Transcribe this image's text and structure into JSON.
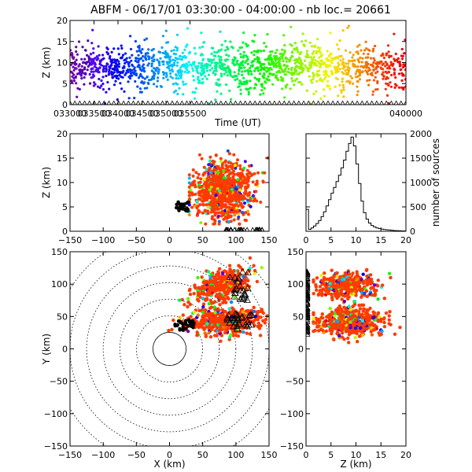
{
  "figure": {
    "title": "ABFM - 06/17/01 03:30:00 - 04:00:00 - nb loc.=  20661"
  },
  "chart_data": [
    {
      "id": "time_height",
      "type": "scatter",
      "xlabel": "Time (UT)",
      "ylabel": "Z (km)",
      "xlim": [
        33000,
        40000
      ],
      "ylim": [
        0,
        20
      ],
      "xticks": [
        "033000",
        "033500",
        "034000",
        "034500",
        "035000",
        "035500",
        "040000"
      ],
      "xtick_values": [
        33000,
        33500,
        34000,
        34500,
        35000,
        35500,
        40000
      ],
      "yticks": [
        "0",
        "5",
        "10",
        "15",
        "20"
      ],
      "color_encoding": "time, violet (033000) to red (040000)",
      "marker_row": "triangles along Z=0",
      "n_sources": 20661
    },
    {
      "id": "x_height",
      "type": "scatter",
      "xlabel": "",
      "ylabel": "Z (km)",
      "xlim": [
        -150,
        150
      ],
      "ylim": [
        0,
        20
      ],
      "xticks": [
        "−150",
        "−100",
        "−50",
        "0",
        "50",
        "100",
        "150"
      ],
      "yticks": [
        "0",
        "5",
        "10",
        "15",
        "20"
      ],
      "clusters": [
        {
          "x_range": [
            30,
            145
          ],
          "z_range": [
            2,
            20
          ],
          "dominant_color": "#ff3a00"
        },
        {
          "x_range": [
            -5,
            30
          ],
          "z_range": [
            3,
            6
          ],
          "dominant_color": "#000000"
        }
      ]
    },
    {
      "id": "height_histogram",
      "type": "line",
      "xlabel": "",
      "ylabel": "number of sources",
      "xlim": [
        0,
        20
      ],
      "ylim": [
        0,
        2000
      ],
      "xticks": [
        "0",
        "5",
        "10",
        "15",
        "20"
      ],
      "yticks": [
        "0",
        "500",
        "1000",
        "1500",
        "2000"
      ],
      "bin_width_km": 0.5,
      "x": [
        0,
        0.5,
        1,
        1.5,
        2,
        2.5,
        3,
        3.5,
        4,
        4.5,
        5,
        5.5,
        6,
        6.5,
        7,
        7.5,
        8,
        8.5,
        9,
        9.5,
        10,
        10.5,
        11,
        11.5,
        12,
        12.5,
        13,
        13.5,
        14,
        14.5,
        15,
        15.5,
        16,
        16.5,
        17,
        17.5,
        18,
        18.5,
        19,
        19.5
      ],
      "values": [
        450,
        40,
        70,
        110,
        160,
        220,
        300,
        400,
        520,
        650,
        780,
        900,
        1020,
        1150,
        1300,
        1460,
        1640,
        1800,
        1930,
        1750,
        1380,
        980,
        620,
        380,
        250,
        170,
        120,
        90,
        70,
        55,
        45,
        35,
        30,
        25,
        20,
        15,
        12,
        10,
        8,
        6
      ]
    },
    {
      "id": "plan_view",
      "type": "scatter",
      "xlabel": "X (km)",
      "ylabel": "Y (km)",
      "xlim": [
        -150,
        150
      ],
      "ylim": [
        -150,
        150
      ],
      "xticks": [
        "−150",
        "−100",
        "−50",
        "0",
        "50",
        "100",
        "150"
      ],
      "yticks": [
        "−150",
        "−100",
        "−50",
        "0",
        "50",
        "100",
        "150"
      ],
      "range_rings_km": [
        25,
        50,
        75,
        100,
        125,
        150,
        175
      ],
      "clusters": [
        {
          "x_range": [
            40,
            145
          ],
          "y_range": [
            20,
            70
          ],
          "dominant_color": "#ff3a00"
        },
        {
          "x_range": [
            40,
            120
          ],
          "y_range": [
            70,
            125
          ],
          "dominant_color": "#ff3a00"
        },
        {
          "x_range": [
            5,
            40
          ],
          "y_range": [
            25,
            45
          ],
          "dominant_color": "#000000"
        }
      ]
    },
    {
      "id": "height_y",
      "type": "scatter",
      "xlabel": "Z (km)",
      "ylabel": "",
      "xlim": [
        0,
        20
      ],
      "ylim": [
        -150,
        150
      ],
      "xticks": [
        "0",
        "5",
        "10",
        "15",
        "20"
      ],
      "yticks": [
        "−150",
        "−100",
        "−50",
        "0",
        "50",
        "100",
        "150"
      ],
      "clusters": [
        {
          "z_range": [
            2,
            20
          ],
          "y_range": [
            20,
            70
          ],
          "dominant_color": "#ff3a00"
        },
        {
          "z_range": [
            2,
            19
          ],
          "y_range": [
            75,
            125
          ],
          "dominant_color": "#ff3a00"
        }
      ]
    }
  ]
}
